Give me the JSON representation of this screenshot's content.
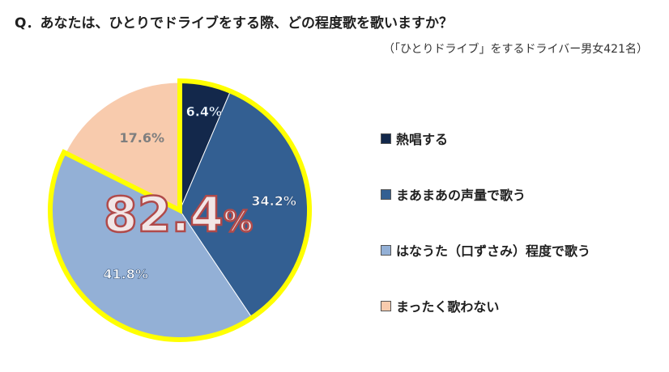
{
  "title": "Q．あなたは、ひとりでドライブをする際、どの程度歌を歌いますか？",
  "subtitle": "（「ひとりドライブ」をするドライバー男女421名）",
  "highlight_total": "82.4",
  "highlight_unit": "%",
  "colors": {
    "highlight_border": "#ffff00",
    "highlight_text_fill": "#f2e6e6",
    "highlight_text_stroke": "#b04a4a"
  },
  "chart_data": {
    "type": "pie",
    "start_angle_deg": 0,
    "direction": "clockwise",
    "slices": [
      {
        "label": "熱唱する",
        "value": 6.4,
        "display": "6.4%",
        "color": "#13284b",
        "label_color": "#ffffff",
        "highlighted": true
      },
      {
        "label": "まあまあの声量で歌う",
        "value": 34.2,
        "display": "34.2%",
        "color": "#335f92",
        "label_color": "#ffffff",
        "highlighted": true
      },
      {
        "label": "はなうた（口ずさみ）程度で歌う",
        "value": 41.8,
        "display": "41.8%",
        "color": "#93b0d6",
        "label_color": "#ffffff",
        "highlighted": true
      },
      {
        "label": "まったく歌わない",
        "value": 17.6,
        "display": "17.6%",
        "color": "#f8cbad",
        "label_color": "#7f7f7f",
        "highlighted": false
      }
    ],
    "legend_position": "right"
  }
}
